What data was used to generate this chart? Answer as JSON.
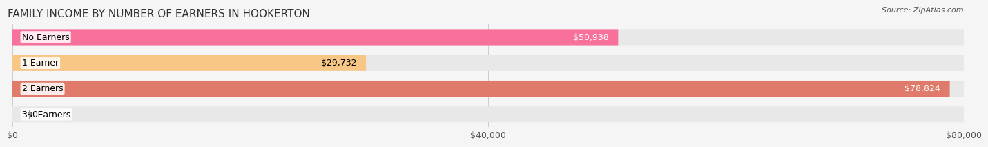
{
  "title": "FAMILY INCOME BY NUMBER OF EARNERS IN HOOKERTON",
  "source": "Source: ZipAtlas.com",
  "categories": [
    "No Earners",
    "1 Earner",
    "2 Earners",
    "3+ Earners"
  ],
  "values": [
    50938,
    29732,
    78824,
    0
  ],
  "bar_colors": [
    "#F7719A",
    "#F9C785",
    "#E07A6A",
    "#A8C4E0"
  ],
  "label_colors": [
    "white",
    "black",
    "white",
    "black"
  ],
  "xlim": [
    0,
    80000
  ],
  "xticks": [
    0,
    40000,
    80000
  ],
  "xtick_labels": [
    "$0",
    "$40,000",
    "$80,000"
  ],
  "background_color": "#f5f5f5",
  "bar_background_color": "#e8e8e8",
  "title_fontsize": 11,
  "label_fontsize": 9,
  "value_fontsize": 9
}
